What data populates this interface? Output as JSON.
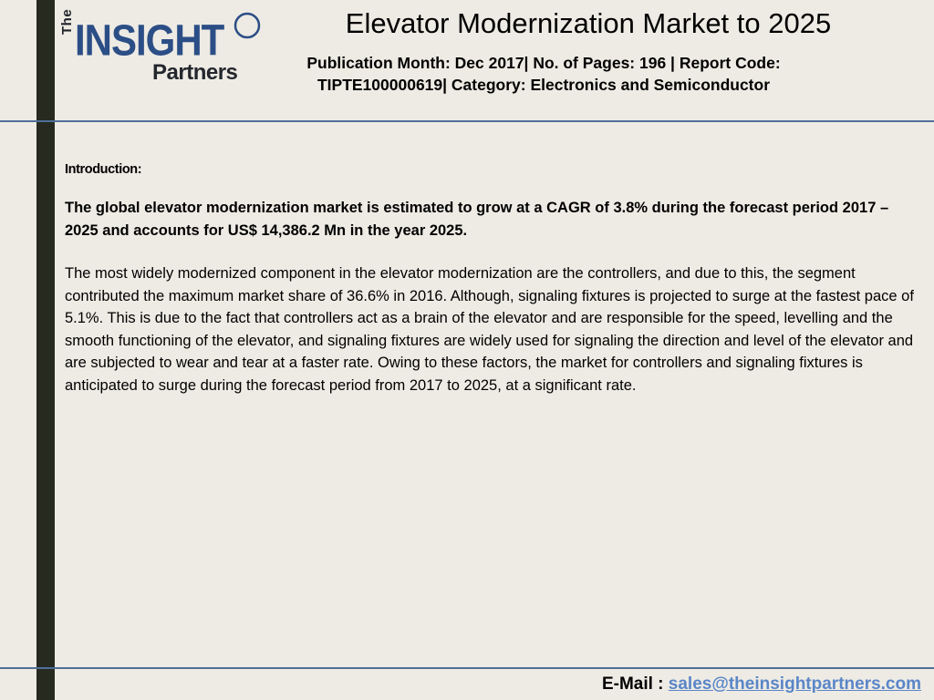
{
  "logo": {
    "the": "The",
    "insight": "INSIGHT",
    "partners": "Partners"
  },
  "header": {
    "title": "Elevator Modernization Market to 2025",
    "pub_line1": "Publication Month: Dec 2017| No. of Pages: 196  | Report Code:",
    "pub_line2": "TIPTE100000619| Category: Electronics and Semiconductor"
  },
  "body": {
    "intro_label": "Introduction:",
    "highlight": "The global elevator modernization market is estimated to grow at a CAGR of 3.8% during the forecast period 2017 – 2025 and accounts for US$ 14,386.2 Mn in the year 2025.",
    "paragraph": "The most widely modernized component in the elevator modernization are the controllers, and due to this, the segment contributed the maximum market share of 36.6% in 2016. Although, signaling fixtures is projected to surge at the fastest pace of 5.1%. This is due to the fact that controllers act as a brain of the elevator and are responsible for the speed, levelling and the smooth functioning of the elevator, and signaling fixtures are widely used for signaling the direction and level of the elevator and are subjected to wear and tear at a faster rate. Owing to these factors, the market for controllers and signaling fixtures is anticipated to surge during the forecast period from 2017 to 2025, at a significant rate."
  },
  "footer": {
    "email_label": "E-Mail : ",
    "email": "sales@theinsightpartners.com"
  },
  "colors": {
    "background": "#eeebe4",
    "left_bar": "#262a1f",
    "rule": "#4f6f99",
    "logo_blue": "#2c4e86",
    "link": "#5a86c8"
  }
}
